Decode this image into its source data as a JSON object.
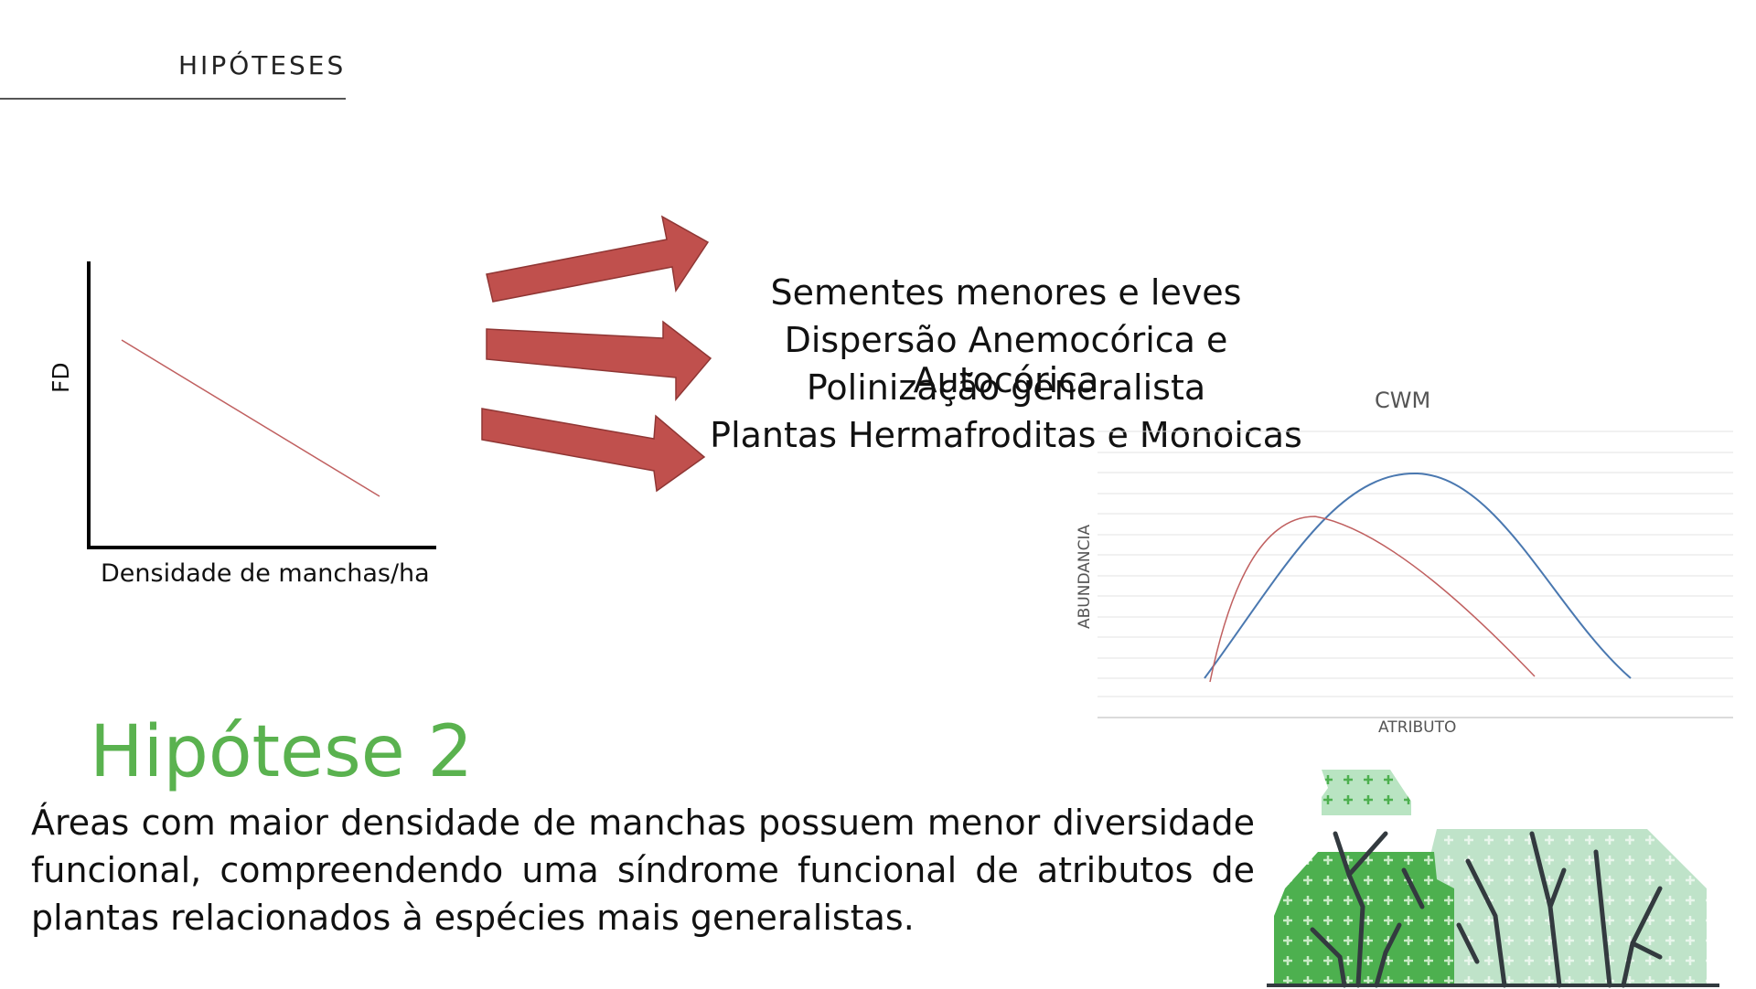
{
  "header": {
    "section_title": "HIPÓTESES"
  },
  "fd_graph": {
    "ylabel": "FD",
    "xlabel": "Densidade de manchas/ha"
  },
  "traits": [
    "Sementes menores e leves",
    "Dispersão Anemocórica e Autocórica",
    "Polinização generalista",
    "Plantas Hermafroditas e Monoicas"
  ],
  "cwm_chart": {
    "title": "CWM",
    "xlabel": "ATRIBUTO",
    "ylabel": "ABUNDANCIA"
  },
  "hypothesis": {
    "title": "Hipótese 2",
    "body": "Áreas com maior densidade de manchas possuem menor diversidade funcional, compreendendo uma síndrome funcional de atributos de plantas relacionados à espécies mais generalistas."
  },
  "colors": {
    "accent_green": "#5ab24f",
    "arrow_red": "#c0504d",
    "curve_blue": "#4a78b0",
    "curve_red": "#c06060"
  },
  "illustration": {
    "icon": "bushes-illustration"
  }
}
